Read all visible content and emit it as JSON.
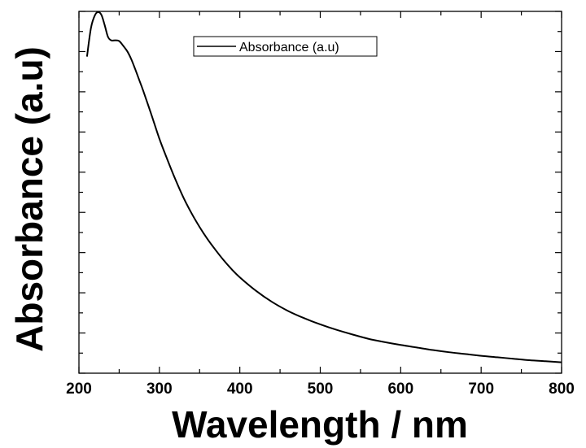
{
  "chart_data": {
    "type": "line",
    "title": "",
    "xlabel": "Wavelength / nm",
    "ylabel": "Absorbance (a.u)",
    "xlim": [
      200,
      800
    ],
    "ylim": [
      0,
      1
    ],
    "x_ticks": [
      200,
      300,
      400,
      500,
      600,
      700,
      800
    ],
    "x_tick_labels": [
      "200",
      "300",
      "400",
      "500",
      "600",
      "700",
      "800"
    ],
    "y_tick_labels_shown": false,
    "grid": false,
    "legend": {
      "position": "top-center",
      "entries": [
        "Absorbance (a.u)"
      ]
    },
    "series": [
      {
        "name": "Absorbance (a.u)",
        "color": "#000000",
        "x": [
          210,
          215,
          220,
          224,
          228,
          232,
          236,
          240,
          245,
          250,
          255,
          260,
          265,
          270,
          275,
          280,
          290,
          300,
          310,
          320,
          330,
          340,
          350,
          360,
          370,
          380,
          390,
          400,
          420,
          440,
          460,
          480,
          500,
          520,
          540,
          560,
          580,
          600,
          620,
          640,
          660,
          680,
          700,
          720,
          740,
          760,
          780,
          800
        ],
        "y": [
          0.875,
          0.955,
          0.99,
          0.998,
          0.99,
          0.962,
          0.93,
          0.92,
          0.92,
          0.918,
          0.905,
          0.89,
          0.868,
          0.84,
          0.81,
          0.78,
          0.715,
          0.648,
          0.59,
          0.535,
          0.485,
          0.442,
          0.404,
          0.37,
          0.34,
          0.312,
          0.287,
          0.265,
          0.228,
          0.197,
          0.172,
          0.152,
          0.135,
          0.12,
          0.107,
          0.095,
          0.086,
          0.078,
          0.071,
          0.064,
          0.058,
          0.053,
          0.048,
          0.044,
          0.04,
          0.036,
          0.033,
          0.03
        ]
      }
    ]
  }
}
